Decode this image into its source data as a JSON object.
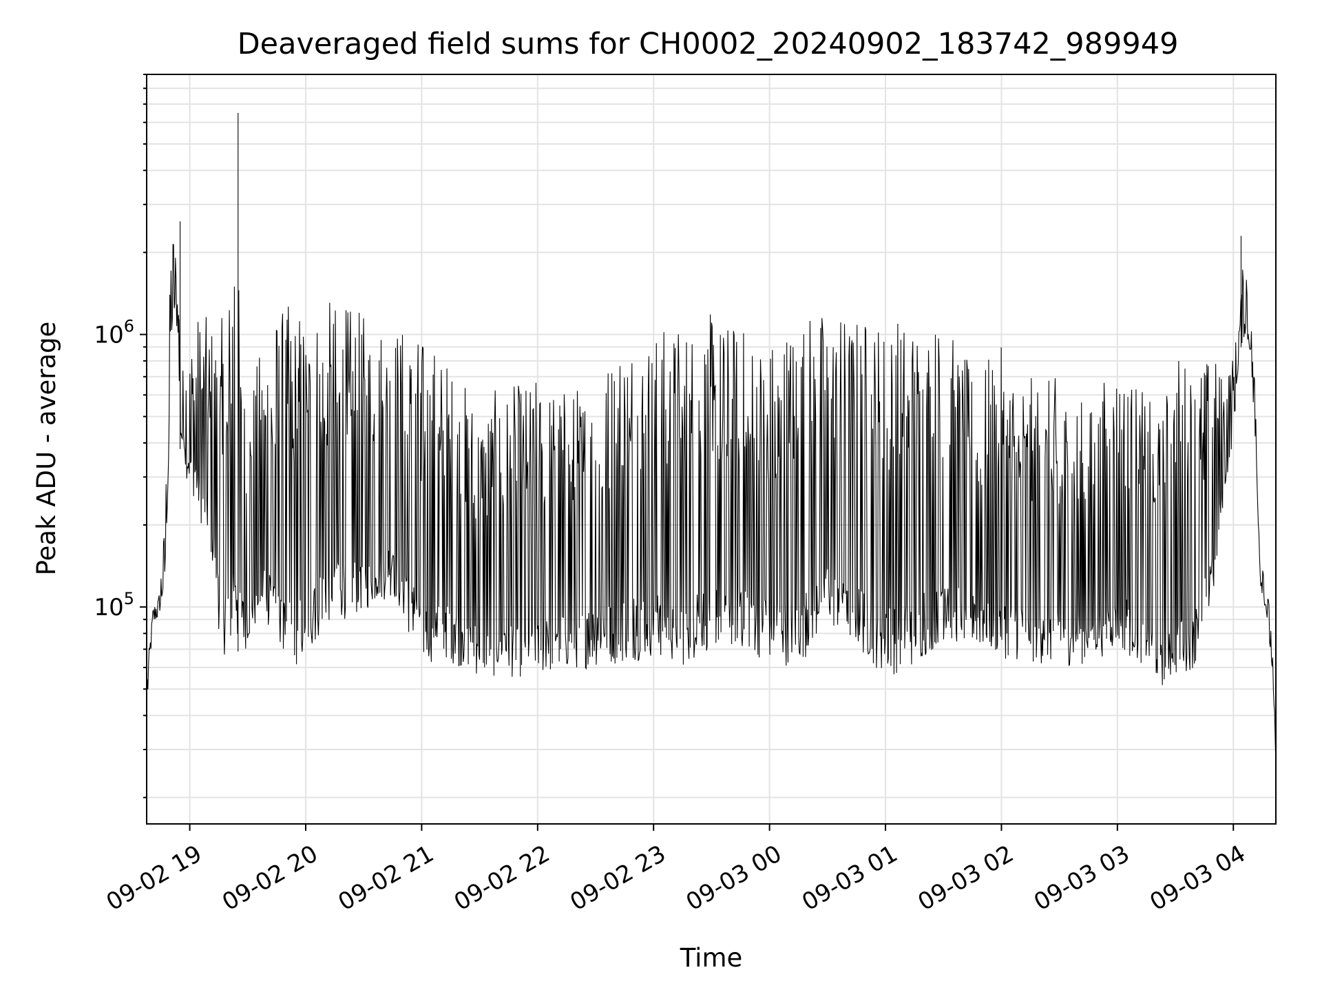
{
  "chart_data": {
    "type": "line",
    "title": "Deaveraged field sums for CH0002_20240902_183742_989949",
    "xlabel": "Time",
    "ylabel": "Peak ADU - average",
    "x_range": [
      "2024-09-02T18:37:42",
      "2024-09-03T04:22:00"
    ],
    "ylim": [
      16000,
      9000000
    ],
    "y_scale": "log",
    "grid": true,
    "legend": "none",
    "colors": {
      "line": "#000000",
      "grid": "#e3e3e3"
    },
    "x_ticks": [
      {
        "value": "2024-09-02T19:00",
        "label": "09-02 19"
      },
      {
        "value": "2024-09-02T20:00",
        "label": "09-02 20"
      },
      {
        "value": "2024-09-02T21:00",
        "label": "09-02 21"
      },
      {
        "value": "2024-09-02T22:00",
        "label": "09-02 22"
      },
      {
        "value": "2024-09-02T23:00",
        "label": "09-02 23"
      },
      {
        "value": "2024-09-03T00:00",
        "label": "09-03 00"
      },
      {
        "value": "2024-09-03T01:00",
        "label": "09-03 01"
      },
      {
        "value": "2024-09-03T02:00",
        "label": "09-03 02"
      },
      {
        "value": "2024-09-03T03:00",
        "label": "09-03 03"
      },
      {
        "value": "2024-09-03T04:00",
        "label": "09-03 04"
      }
    ],
    "y_ticks": [
      {
        "value": 100000,
        "base": "10",
        "exp": "5"
      },
      {
        "value": 1000000,
        "base": "10",
        "exp": "6"
      }
    ],
    "series": [
      {
        "x": [
          "2024-09-02T18:38",
          "2024-09-02T18:41",
          "2024-09-02T18:44",
          "2024-09-02T18:47",
          "2024-09-02T18:49",
          "2024-09-02T18:50",
          "2024-09-02T18:52",
          "2024-09-02T18:54",
          "2024-09-02T18:55",
          "2024-09-02T18:56",
          "2024-09-02T18:57",
          "2024-09-02T18:58",
          "2024-09-02T19:00",
          "2024-09-02T19:03",
          "2024-09-02T19:06",
          "2024-09-02T19:10",
          "2024-09-02T19:13",
          "2024-09-02T19:16",
          "2024-09-02T19:20",
          "2024-09-02T19:23",
          "2024-09-02T19:26",
          "2024-09-02T19:29",
          "2024-09-02T19:32",
          "2024-09-02T19:35",
          "2024-09-02T19:40",
          "2024-09-02T19:45",
          "2024-09-02T19:50",
          "2024-09-02T19:55",
          "2024-09-02T20:00",
          "2024-09-02T20:10",
          "2024-09-02T20:20",
          "2024-09-02T20:30",
          "2024-09-02T20:45",
          "2024-09-02T21:00",
          "2024-09-02T21:10",
          "2024-09-02T21:20",
          "2024-09-02T21:30",
          "2024-09-02T21:45",
          "2024-09-02T22:00",
          "2024-09-02T22:15",
          "2024-09-02T22:30",
          "2024-09-02T22:45",
          "2024-09-02T23:00",
          "2024-09-02T23:15",
          "2024-09-02T23:30",
          "2024-09-02T23:45",
          "2024-09-03T00:00",
          "2024-09-03T00:15",
          "2024-09-03T00:30",
          "2024-09-03T00:45",
          "2024-09-03T01:00",
          "2024-09-03T01:15",
          "2024-09-03T01:30",
          "2024-09-03T01:45",
          "2024-09-03T02:00",
          "2024-09-03T02:15",
          "2024-09-03T02:30",
          "2024-09-03T02:45",
          "2024-09-03T03:00",
          "2024-09-03T03:15",
          "2024-09-03T03:22",
          "2024-09-03T03:30",
          "2024-09-03T03:40",
          "2024-09-03T03:50",
          "2024-09-03T03:55",
          "2024-09-03T04:00",
          "2024-09-03T04:03",
          "2024-09-03T04:06",
          "2024-09-03T04:09",
          "2024-09-03T04:12",
          "2024-09-03T04:14",
          "2024-09-03T04:17",
          "2024-09-03T04:20",
          "2024-09-03T04:22"
        ],
        "low": [
          45000,
          88000,
          92000,
          120000,
          300000,
          900000,
          1150000,
          1000000,
          380000,
          360000,
          400000,
          300000,
          280000,
          240000,
          200000,
          170000,
          120000,
          68000,
          65000,
          70000,
          68000,
          70000,
          75000,
          85000,
          85000,
          75000,
          65000,
          60000,
          60000,
          85000,
          90000,
          95000,
          110000,
          60000,
          65000,
          60000,
          55000,
          55000,
          55000,
          58000,
          60000,
          62000,
          65000,
          60000,
          70000,
          70000,
          62000,
          60000,
          85000,
          70000,
          55000,
          60000,
          75000,
          70000,
          65000,
          62000,
          60000,
          62000,
          70000,
          60000,
          50000,
          55000,
          60000,
          110000,
          250000,
          420000,
          850000,
          1000000,
          850000,
          300000,
          120000,
          95000,
          60000,
          20000
        ],
        "high": [
          60000,
          100000,
          110000,
          200000,
          700000,
          2000000,
          2600000,
          1300000,
          1800000,
          900000,
          650000,
          900000,
          900000,
          1200000,
          1200000,
          1150000,
          1100000,
          1150000,
          1200000,
          6500000,
          1100000,
          600000,
          700000,
          800000,
          1200000,
          1250000,
          1300000,
          1300000,
          1300000,
          1350000,
          1300000,
          1200000,
          1150000,
          1000000,
          900000,
          700000,
          600000,
          650000,
          700000,
          650000,
          700000,
          1100000,
          1050000,
          1150000,
          1200000,
          1100000,
          1000000,
          1250000,
          1250000,
          1200000,
          1200000,
          1200000,
          1150000,
          750000,
          900000,
          700000,
          700000,
          550000,
          850000,
          600000,
          500000,
          900000,
          800000,
          850000,
          700000,
          850000,
          1150000,
          2300000,
          1150000,
          600000,
          180000,
          130000,
          80000,
          30000
        ],
        "spikes": [
          {
            "x": "2024-09-02T18:55",
            "value": 2600000
          },
          {
            "x": "2024-09-02T19:25",
            "value": 6500000
          },
          {
            "x": "2024-09-03T04:04",
            "value": 2300000
          }
        ]
      }
    ]
  }
}
